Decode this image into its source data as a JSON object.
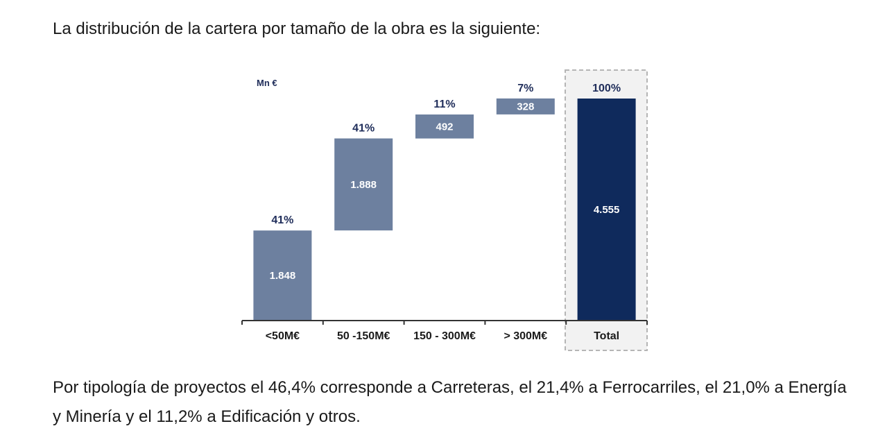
{
  "intro_text": "La distribución de la cartera por tamaño de la obra es la siguiente:",
  "outro_text": "Por tipología de proyectos el 46,4% corresponde a Carreteras, el 21,4% a Ferrocarriles, el 21,0% a Energía y Minería y el 11,2% a Edificación y otros.",
  "chart_data": {
    "type": "waterfall",
    "unit_label": "Mn €",
    "categories": [
      "<50M€",
      "50 -150M€",
      "150 - 300M€",
      "> 300M€",
      "Total"
    ],
    "values": [
      1848,
      1888,
      492,
      328,
      4555
    ],
    "value_labels": [
      "1.848",
      "1.888",
      "492",
      "328",
      "4.555"
    ],
    "percent_labels": [
      "41%",
      "41%",
      "11%",
      "7%",
      "100%"
    ],
    "is_total": [
      false,
      false,
      false,
      false,
      true
    ],
    "colors": {
      "step_bar": "#6d809f",
      "total_bar": "#0f2a5c",
      "percent_text": "#1f2d5a",
      "bar_text": "#ffffff",
      "axis": "#333333",
      "total_box_border": "#b5b5b5"
    }
  }
}
